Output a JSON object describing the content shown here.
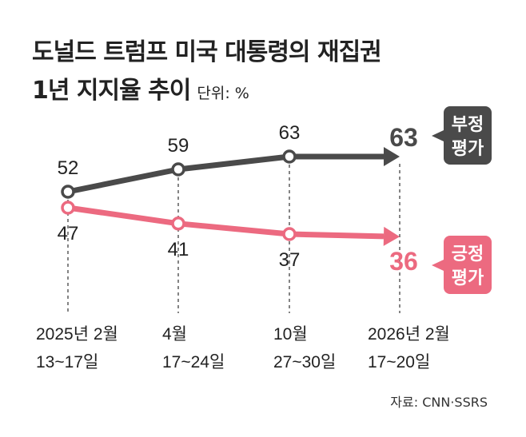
{
  "title_line1": "도널드 트럼프 미국 대통령의 재집권",
  "title_line2": "1년 지지율 추이",
  "unit": "단위: %",
  "source": "자료: CNN·SSRS",
  "colors": {
    "negative": "#4a4a4a",
    "positive": "#ec6a80"
  },
  "chart_data": {
    "type": "line",
    "categories": [
      [
        "2025년 2월",
        "13~17일"
      ],
      [
        "4월",
        "17~24일"
      ],
      [
        "10월",
        "27~30일"
      ],
      [
        "2026년 2월",
        "17~20일"
      ]
    ],
    "series": [
      {
        "name": "부정 평가",
        "label_lines": [
          "부정",
          "평가"
        ],
        "values": [
          52,
          59,
          63,
          63
        ]
      },
      {
        "name": "긍정 평가",
        "label_lines": [
          "긍정",
          "평가"
        ],
        "values": [
          47,
          41,
          37,
          36
        ]
      }
    ],
    "unit": "%"
  }
}
